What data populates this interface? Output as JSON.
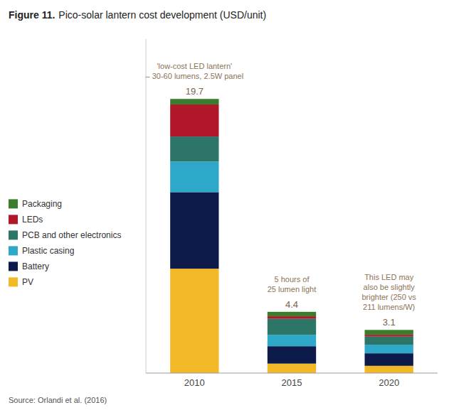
{
  "chart_data": {
    "type": "bar",
    "title": "Figure 11.",
    "subtitle": "Pico-solar lantern cost development (USD/unit)",
    "categories": [
      "2010",
      "2015",
      "2020"
    ],
    "series": [
      {
        "name": "PV",
        "color": "#F2B825",
        "values": [
          7.5,
          0.68,
          0.52
        ]
      },
      {
        "name": "Battery",
        "color": "#0D1B4B",
        "values": [
          5.5,
          1.25,
          0.9
        ]
      },
      {
        "name": "Plastic casing",
        "color": "#2EA8C8",
        "values": [
          2.2,
          0.82,
          0.62
        ]
      },
      {
        "name": "PCB and other electronics",
        "color": "#2D7566",
        "values": [
          1.8,
          1.15,
          0.58
        ]
      },
      {
        "name": "LEDs",
        "color": "#B0182A",
        "values": [
          2.3,
          0.18,
          0.13
        ]
      },
      {
        "name": "Packaging",
        "color": "#3A7D2C",
        "values": [
          0.4,
          0.32,
          0.35
        ]
      }
    ],
    "totals": [
      19.7,
      4.4,
      3.1
    ],
    "annotations": [
      "'low-cost LED lantern'\n– 30-60 lumens, 2.5W panel",
      "5 hours of\n25 lumen light",
      "This LED may\nalso be slightly\nbrighter (250 vs\n211 lumens/W)"
    ],
    "source": "Source: Orlandi et al. (2016)",
    "stacked": true,
    "ylim": [
      0,
      24
    ],
    "yticks": [],
    "tick_labels": "x",
    "grid": false,
    "legend": "left"
  }
}
